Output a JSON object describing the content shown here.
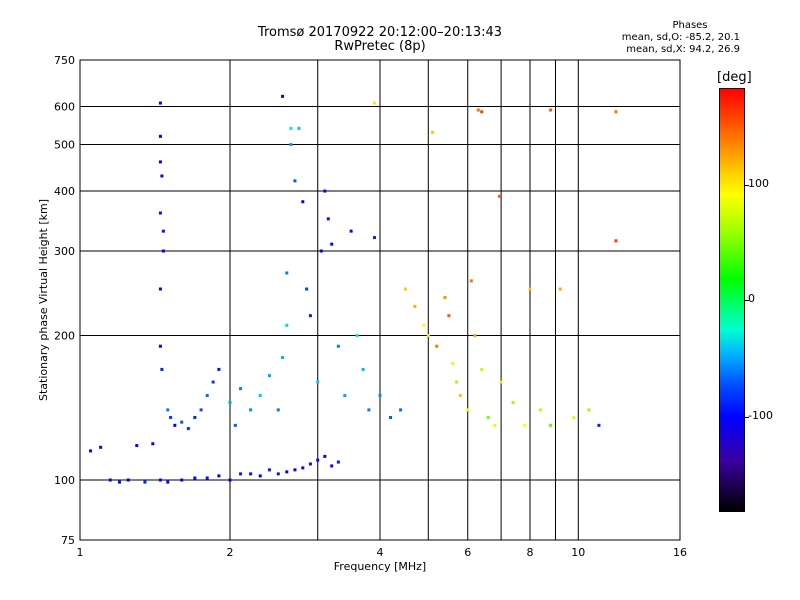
{
  "chart_data": {
    "type": "scatter",
    "title": "Tromsø 20170922 20:12:00–20:13:43",
    "subtitle": "RwPretec (8p)",
    "xlabel": "Frequency [MHz]",
    "ylabel": "Stationary phase Virtual Height [km]",
    "xscale": "log",
    "yscale": "log",
    "xlim": [
      1,
      16
    ],
    "ylim": [
      75,
      750
    ],
    "x_ticks": [
      1,
      2,
      4,
      6,
      8,
      10,
      16
    ],
    "y_ticks": [
      75,
      100,
      200,
      300,
      400,
      500,
      600,
      750
    ],
    "grid": true,
    "legend_title": "Phases",
    "legend_lines": [
      "mean, sd,O: -85.2, 20.1",
      "mean, sd,X: 94.2, 26.9"
    ],
    "colorbar": {
      "label": "[deg]",
      "ticks": [
        100,
        0,
        -100
      ],
      "range": [
        -180,
        180
      ]
    },
    "series": [
      {
        "x": [
          1.05,
          1.1,
          1.15,
          1.2,
          1.25,
          1.3,
          1.35,
          1.4,
          1.45,
          1.5,
          1.55,
          1.6,
          1.7,
          1.8,
          1.9,
          2.0,
          2.1,
          2.2,
          2.3,
          2.4,
          2.5,
          2.6,
          2.7,
          2.8,
          2.9,
          3.0,
          3.1,
          3.2,
          3.3
        ],
        "y": [
          115,
          117,
          100,
          99,
          100,
          118,
          99,
          119,
          100,
          99,
          130,
          100,
          101,
          101,
          102,
          100,
          103,
          103,
          102,
          105,
          103,
          104,
          105,
          106,
          108,
          110,
          112,
          107,
          109
        ],
        "phase": [
          -100,
          -110,
          -105,
          -95,
          -100,
          -110,
          -90,
          -100,
          -105,
          -98,
          -100,
          -102,
          -96,
          -94,
          -100,
          -105,
          -92,
          -98,
          -101,
          -90,
          -95,
          -100,
          -110,
          -100,
          -95,
          -105,
          -100,
          -98,
          -92
        ]
      },
      {
        "x": [
          1.45,
          1.45,
          1.45,
          1.45,
          1.45,
          1.45,
          1.46,
          1.46,
          1.47,
          1.47,
          1.5,
          1.52,
          1.6,
          1.65,
          1.7,
          1.75,
          1.8,
          1.85,
          1.9,
          2.0,
          2.05,
          2.1,
          2.2,
          2.3,
          2.4,
          2.5,
          2.55,
          2.6
        ],
        "y": [
          610,
          520,
          460,
          360,
          250,
          190,
          170,
          430,
          330,
          300,
          140,
          135,
          132,
          128,
          135,
          140,
          150,
          160,
          170,
          145,
          130,
          155,
          140,
          150,
          165,
          140,
          180,
          210
        ],
        "phase": [
          -110,
          -100,
          -105,
          -95,
          -110,
          -100,
          -90,
          -108,
          -95,
          -105,
          -60,
          -80,
          -70,
          -85,
          -90,
          -75,
          -65,
          -80,
          -95,
          -50,
          -70,
          -60,
          -55,
          -40,
          -50,
          -60,
          -45,
          -35
        ]
      },
      {
        "x": [
          2.55,
          2.6,
          2.65,
          2.65,
          2.7,
          2.75,
          2.8,
          2.85,
          2.9,
          3.0,
          3.05,
          3.1,
          3.15,
          3.2,
          3.3,
          3.4,
          3.5,
          3.6,
          3.7,
          3.8,
          3.9,
          4.0,
          4.2,
          4.4
        ],
        "y": [
          630,
          270,
          540,
          500,
          420,
          540,
          380,
          250,
          220,
          160,
          300,
          400,
          350,
          310,
          190,
          150,
          330,
          200,
          170,
          140,
          320,
          150,
          135,
          140
        ],
        "phase": [
          -110,
          -60,
          -30,
          -50,
          -70,
          -40,
          -100,
          -80,
          -90,
          -40,
          -100,
          -110,
          -95,
          -105,
          -60,
          -50,
          -100,
          -30,
          -45,
          -60,
          -90,
          -55,
          -70,
          -65
        ]
      },
      {
        "x": [
          4.5,
          4.7,
          4.9,
          5.0,
          5.2,
          5.4,
          5.5,
          5.6,
          5.7,
          5.8,
          6.0,
          6.1,
          6.2,
          6.4,
          6.6,
          6.8,
          7.0,
          7.4,
          7.8,
          8.0,
          8.4,
          8.8,
          9.2,
          9.8,
          10.5,
          11.0
        ],
        "y": [
          250,
          230,
          210,
          200,
          190,
          240,
          220,
          175,
          160,
          150,
          140,
          260,
          200,
          170,
          135,
          130,
          160,
          145,
          130,
          250,
          140,
          130,
          250,
          135,
          140,
          130
        ],
        "phase": [
          110,
          120,
          90,
          100,
          140,
          130,
          150,
          80,
          60,
          110,
          90,
          140,
          120,
          70,
          50,
          80,
          100,
          60,
          90,
          110,
          70,
          40,
          120,
          80,
          60,
          -90
        ],
        "x_sparse": [
          3.9,
          5.1,
          6.3,
          6.4,
          6.95,
          8.8,
          11.9,
          11.9
        ],
        "y_sparse": [
          610,
          530,
          590,
          585,
          390,
          590,
          585,
          315
        ],
        "phase_sparse": [
          100,
          110,
          140,
          160,
          150,
          150,
          140,
          160
        ]
      }
    ]
  }
}
